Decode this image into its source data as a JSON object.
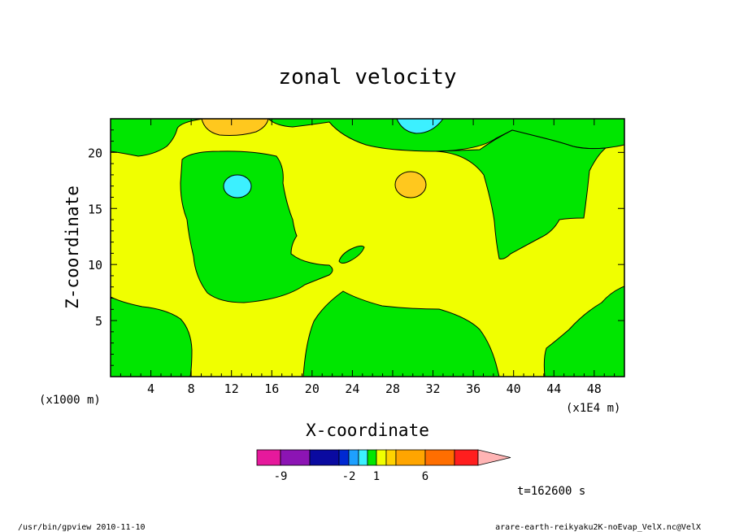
{
  "chart_data": {
    "type": "heatmap",
    "title": "zonal velocity",
    "xlabel": "X-coordinate",
    "ylabel": "Z-coordinate",
    "x_unit_note": "(x1E4 m)",
    "z_unit_note": "(x1000 m)",
    "xlim": [
      0,
      51
    ],
    "ylim": [
      0,
      23
    ],
    "x_ticks": [
      "4",
      "8",
      "12",
      "16",
      "20",
      "24",
      "28",
      "32",
      "36",
      "40",
      "44",
      "48"
    ],
    "y_ticks": [
      "5",
      "10",
      "15",
      "20"
    ],
    "colorbar": {
      "tick_labels": [
        "-9",
        "-2",
        "1",
        "6"
      ],
      "colors": [
        "#e6199c",
        "#8c14b4",
        "#0a0aa0",
        "#0028d2",
        "#1ea0ff",
        "#3cf0ff",
        "#00e600",
        "#f0ff00",
        "#ffd200",
        "#ffa500",
        "#ff6e00",
        "#ff1e1e",
        "#ff7878",
        "#ffb4b4"
      ]
    },
    "contour_fills": {
      "background": "#f0ff00",
      "green": "#00e600",
      "orange": "#ffc81e",
      "cyan": "#3cf0ff"
    },
    "time_label": "t=162600 s"
  },
  "footer": {
    "left": "/usr/bin/gpview   2010-11-10",
    "right": "arare-earth-reikyaku2K-noEvap_VelX.nc@VelX"
  }
}
